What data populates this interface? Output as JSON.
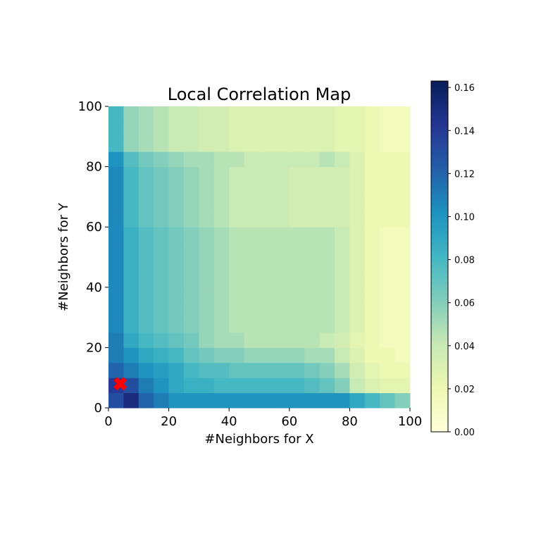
{
  "chart_data": {
    "type": "heatmap",
    "title": "Local Correlation Map",
    "xlabel": "#Neighbors for X",
    "ylabel": "#Neighbors for Y",
    "xlim": [
      0,
      100
    ],
    "ylim": [
      0,
      100
    ],
    "xticks": [
      "0",
      "20",
      "40",
      "60",
      "80",
      "100"
    ],
    "yticks": [
      "0",
      "20",
      "40",
      "60",
      "80",
      "100"
    ],
    "colormap": "YlGnBu",
    "color_range": [
      0,
      0.163
    ],
    "colorbar_ticks": [
      "0.00",
      "0.02",
      "0.04",
      "0.06",
      "0.08",
      "0.10",
      "0.12",
      "0.14",
      "0.16"
    ],
    "cell_size": 5,
    "rows_bottom_to_top": [
      [
        0.13,
        0.15,
        0.12,
        0.11,
        0.1,
        0.1,
        0.1,
        0.1,
        0.1,
        0.1,
        0.1,
        0.1,
        0.1,
        0.1,
        0.1,
        0.1,
        0.09,
        0.08,
        0.07,
        0.06
      ],
      [
        0.14,
        0.13,
        0.11,
        0.1,
        0.09,
        0.085,
        0.085,
        0.08,
        0.08,
        0.08,
        0.08,
        0.08,
        0.08,
        0.075,
        0.07,
        0.06,
        0.04,
        0.03,
        0.025,
        0.025
      ],
      [
        0.12,
        0.11,
        0.1,
        0.095,
        0.09,
        0.08,
        0.075,
        0.075,
        0.07,
        0.07,
        0.07,
        0.07,
        0.07,
        0.065,
        0.06,
        0.05,
        0.035,
        0.025,
        0.02,
        0.02
      ],
      [
        0.11,
        0.1,
        0.09,
        0.085,
        0.08,
        0.07,
        0.065,
        0.06,
        0.06,
        0.055,
        0.055,
        0.055,
        0.055,
        0.05,
        0.05,
        0.04,
        0.03,
        0.02,
        0.02,
        0.015
      ],
      [
        0.11,
        0.09,
        0.08,
        0.075,
        0.07,
        0.065,
        0.055,
        0.05,
        0.05,
        0.045,
        0.045,
        0.045,
        0.045,
        0.045,
        0.04,
        0.035,
        0.025,
        0.02,
        0.015,
        0.015
      ],
      [
        0.105,
        0.085,
        0.075,
        0.07,
        0.065,
        0.06,
        0.055,
        0.05,
        0.045,
        0.045,
        0.045,
        0.045,
        0.045,
        0.045,
        0.045,
        0.04,
        0.03,
        0.02,
        0.015,
        0.015
      ],
      [
        0.105,
        0.085,
        0.075,
        0.07,
        0.065,
        0.06,
        0.055,
        0.05,
        0.045,
        0.045,
        0.045,
        0.045,
        0.045,
        0.045,
        0.045,
        0.04,
        0.03,
        0.02,
        0.015,
        0.015
      ],
      [
        0.105,
        0.085,
        0.075,
        0.07,
        0.065,
        0.06,
        0.055,
        0.05,
        0.045,
        0.045,
        0.045,
        0.045,
        0.045,
        0.045,
        0.045,
        0.04,
        0.03,
        0.02,
        0.015,
        0.015
      ],
      [
        0.105,
        0.085,
        0.075,
        0.07,
        0.065,
        0.06,
        0.055,
        0.05,
        0.045,
        0.045,
        0.045,
        0.045,
        0.045,
        0.045,
        0.045,
        0.04,
        0.03,
        0.02,
        0.015,
        0.015
      ],
      [
        0.105,
        0.085,
        0.075,
        0.07,
        0.065,
        0.06,
        0.055,
        0.05,
        0.045,
        0.045,
        0.045,
        0.045,
        0.045,
        0.045,
        0.045,
        0.04,
        0.03,
        0.02,
        0.015,
        0.015
      ],
      [
        0.105,
        0.085,
        0.075,
        0.07,
        0.065,
        0.06,
        0.055,
        0.05,
        0.045,
        0.045,
        0.045,
        0.045,
        0.045,
        0.045,
        0.045,
        0.04,
        0.03,
        0.02,
        0.015,
        0.015
      ],
      [
        0.105,
        0.085,
        0.075,
        0.07,
        0.065,
        0.06,
        0.055,
        0.05,
        0.045,
        0.045,
        0.045,
        0.045,
        0.045,
        0.045,
        0.045,
        0.04,
        0.03,
        0.02,
        0.015,
        0.015
      ],
      [
        0.105,
        0.08,
        0.07,
        0.065,
        0.06,
        0.055,
        0.05,
        0.045,
        0.04,
        0.04,
        0.04,
        0.04,
        0.035,
        0.035,
        0.035,
        0.035,
        0.03,
        0.02,
        0.02,
        0.02
      ],
      [
        0.105,
        0.08,
        0.07,
        0.065,
        0.06,
        0.055,
        0.05,
        0.045,
        0.04,
        0.04,
        0.04,
        0.04,
        0.035,
        0.035,
        0.035,
        0.035,
        0.03,
        0.02,
        0.02,
        0.02
      ],
      [
        0.105,
        0.08,
        0.07,
        0.065,
        0.06,
        0.055,
        0.05,
        0.045,
        0.04,
        0.04,
        0.04,
        0.04,
        0.035,
        0.035,
        0.035,
        0.035,
        0.03,
        0.02,
        0.02,
        0.02
      ],
      [
        0.105,
        0.08,
        0.07,
        0.065,
        0.06,
        0.055,
        0.05,
        0.045,
        0.04,
        0.04,
        0.04,
        0.04,
        0.035,
        0.035,
        0.035,
        0.035,
        0.03,
        0.02,
        0.02,
        0.02
      ],
      [
        0.1,
        0.075,
        0.065,
        0.06,
        0.055,
        0.05,
        0.05,
        0.045,
        0.045,
        0.04,
        0.04,
        0.04,
        0.04,
        0.04,
        0.045,
        0.04,
        0.03,
        0.02,
        0.02,
        0.02
      ],
      [
        0.08,
        0.055,
        0.05,
        0.045,
        0.04,
        0.04,
        0.035,
        0.035,
        0.03,
        0.03,
        0.03,
        0.03,
        0.03,
        0.03,
        0.03,
        0.025,
        0.025,
        0.02,
        0.015,
        0.015
      ],
      [
        0.08,
        0.055,
        0.05,
        0.045,
        0.04,
        0.04,
        0.035,
        0.035,
        0.03,
        0.03,
        0.03,
        0.03,
        0.03,
        0.03,
        0.03,
        0.025,
        0.025,
        0.02,
        0.015,
        0.015
      ],
      [
        0.08,
        0.055,
        0.05,
        0.045,
        0.04,
        0.04,
        0.035,
        0.035,
        0.03,
        0.03,
        0.03,
        0.03,
        0.03,
        0.03,
        0.03,
        0.025,
        0.025,
        0.02,
        0.015,
        0.015
      ]
    ],
    "marker": {
      "x": 4,
      "y": 8,
      "symbol": "X",
      "color": "#ff0000"
    }
  }
}
